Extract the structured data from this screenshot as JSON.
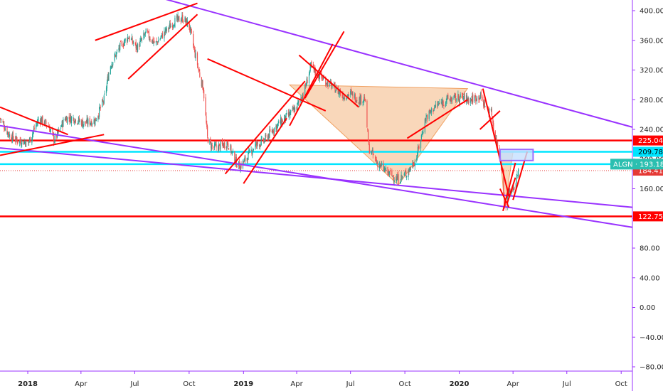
{
  "chart_data": {
    "type": "candlestick",
    "ticker": "ALGN",
    "y_axis": {
      "min": -85,
      "max": 410,
      "side": "right",
      "ticks": [
        400,
        360,
        320,
        280,
        240,
        200,
        160,
        120,
        80,
        40,
        0,
        -40,
        -80
      ],
      "tick_labels": [
        "400.00",
        "360.00",
        "320.00",
        "280.00",
        "240.00",
        "200.00",
        "160.00",
        "120.00",
        "80.00",
        "40.00",
        "0.00",
        "−40.00",
        "−80.00"
      ]
    },
    "x_axis": {
      "start": "2017-11-15",
      "end": "2020-10-20",
      "ticks": [
        {
          "label": "2018",
          "date": "2018-01-01",
          "bold": true
        },
        {
          "label": "Apr",
          "date": "2018-04-01",
          "bold": false
        },
        {
          "label": "Jul",
          "date": "2018-07-01",
          "bold": false
        },
        {
          "label": "Oct",
          "date": "2018-10-01",
          "bold": false
        },
        {
          "label": "2019",
          "date": "2019-01-01",
          "bold": true
        },
        {
          "label": "Apr",
          "date": "2019-04-01",
          "bold": false
        },
        {
          "label": "Jul",
          "date": "2019-07-01",
          "bold": false
        },
        {
          "label": "Oct",
          "date": "2019-10-01",
          "bold": false
        },
        {
          "label": "2020",
          "date": "2020-01-01",
          "bold": true
        },
        {
          "label": "Apr",
          "date": "2020-04-01",
          "bold": false
        },
        {
          "label": "Jul",
          "date": "2020-07-01",
          "bold": false
        },
        {
          "label": "Oct",
          "date": "2020-10-01",
          "bold": false
        }
      ]
    },
    "price_path": [
      [
        "2017-11-15",
        255
      ],
      [
        "2017-12-01",
        232
      ],
      [
        "2017-12-15",
        225
      ],
      [
        "2018-01-02",
        222
      ],
      [
        "2018-01-20",
        255
      ],
      [
        "2018-02-05",
        245
      ],
      [
        "2018-02-15",
        225
      ],
      [
        "2018-03-05",
        255
      ],
      [
        "2018-03-20",
        255
      ],
      [
        "2018-04-05",
        248
      ],
      [
        "2018-04-25",
        252
      ],
      [
        "2018-05-10",
        280
      ],
      [
        "2018-05-20",
        325
      ],
      [
        "2018-06-05",
        350
      ],
      [
        "2018-06-20",
        365
      ],
      [
        "2018-07-05",
        350
      ],
      [
        "2018-07-20",
        370
      ],
      [
        "2018-08-05",
        355
      ],
      [
        "2018-08-20",
        370
      ],
      [
        "2018-09-05",
        385
      ],
      [
        "2018-09-20",
        390
      ],
      [
        "2018-10-01",
        380
      ],
      [
        "2018-10-10",
        345
      ],
      [
        "2018-10-20",
        310
      ],
      [
        "2018-10-25",
        295
      ],
      [
        "2018-11-01",
        228
      ],
      [
        "2018-11-10",
        215
      ],
      [
        "2018-11-25",
        218
      ],
      [
        "2018-12-05",
        222
      ],
      [
        "2018-12-20",
        195
      ],
      [
        "2018-12-26",
        190
      ],
      [
        "2019-01-05",
        200
      ],
      [
        "2019-01-20",
        218
      ],
      [
        "2019-02-05",
        225
      ],
      [
        "2019-02-20",
        240
      ],
      [
        "2019-03-05",
        250
      ],
      [
        "2019-03-20",
        260
      ],
      [
        "2019-04-01",
        270
      ],
      [
        "2019-04-15",
        295
      ],
      [
        "2019-04-25",
        325
      ],
      [
        "2019-05-05",
        315
      ],
      [
        "2019-05-20",
        305
      ],
      [
        "2019-06-05",
        295
      ],
      [
        "2019-06-20",
        285
      ],
      [
        "2019-07-01",
        288
      ],
      [
        "2019-07-15",
        280
      ],
      [
        "2019-07-25",
        282
      ],
      [
        "2019-08-01",
        215
      ],
      [
        "2019-08-15",
        195
      ],
      [
        "2019-09-01",
        182
      ],
      [
        "2019-09-20",
        172
      ],
      [
        "2019-10-05",
        182
      ],
      [
        "2019-10-20",
        200
      ],
      [
        "2019-11-05",
        255
      ],
      [
        "2019-11-20",
        270
      ],
      [
        "2019-12-10",
        280
      ],
      [
        "2020-01-05",
        283
      ],
      [
        "2020-01-20",
        280
      ],
      [
        "2020-02-05",
        285
      ],
      [
        "2020-02-15",
        270
      ],
      [
        "2020-02-25",
        262
      ],
      [
        "2020-03-01",
        230
      ],
      [
        "2020-03-10",
        210
      ],
      [
        "2020-03-18",
        135
      ],
      [
        "2020-03-25",
        155
      ],
      [
        "2020-04-05",
        165
      ],
      [
        "2020-04-10",
        184.41
      ]
    ],
    "horizontal_levels": [
      {
        "value": 225.04,
        "label": "225.04",
        "color": "#ff0000"
      },
      {
        "value": 209.78,
        "label": "209.78",
        "color": "#00e5ff"
      },
      {
        "value": 193.18,
        "label": "193.18",
        "color": "#00e5ff"
      },
      {
        "value": 122.75,
        "label": "122.75",
        "color": "#ff0000"
      }
    ],
    "last_price": {
      "value": 184.41,
      "label": "184.41",
      "color": "#e53935"
    },
    "price_tag": {
      "ticker": "ALGN",
      "value": "193.18",
      "color": "#2bbfb0"
    },
    "trendlines": [
      {
        "color": "#9932ff",
        "from": [
          "2018-08-01",
          420
        ],
        "to": [
          "2020-10-20",
          243
        ]
      },
      {
        "color": "#9932ff",
        "from": [
          "2017-11-15",
          215
        ],
        "to": [
          "2020-10-20",
          135
        ]
      },
      {
        "color": "#9932ff",
        "from": [
          "2017-11-15",
          245
        ],
        "to": [
          "2020-10-20",
          108
        ]
      },
      {
        "color": "#ff0000",
        "from": [
          "2017-11-15",
          270
        ],
        "to": [
          "2018-03-10",
          233
        ]
      },
      {
        "color": "#ff0000",
        "from": [
          "2017-11-15",
          205
        ],
        "to": [
          "2018-05-10",
          233
        ]
      },
      {
        "color": "#ff0000",
        "from": [
          "2018-04-25",
          360
        ],
        "to": [
          "2018-10-15",
          410
        ]
      },
      {
        "color": "#ff0000",
        "from": [
          "2018-06-20",
          308
        ],
        "to": [
          "2018-10-15",
          395
        ]
      },
      {
        "color": "#ff0000",
        "from": [
          "2018-11-01",
          335
        ],
        "to": [
          "2019-05-20",
          265
        ]
      },
      {
        "color": "#ff0000",
        "from": [
          "2018-12-01",
          180
        ],
        "to": [
          "2019-04-15",
          305
        ]
      },
      {
        "color": "#ff0000",
        "from": [
          "2019-01-01",
          167
        ],
        "to": [
          "2019-03-15",
          255
        ]
      },
      {
        "color": "#ff0000",
        "from": [
          "2019-03-20",
          245
        ],
        "to": [
          "2019-06-01",
          355
        ]
      },
      {
        "color": "#ff0000",
        "from": [
          "2019-04-05",
          340
        ],
        "to": [
          "2019-07-15",
          270
        ]
      },
      {
        "color": "#ff0000",
        "from": [
          "2019-04-15",
          282
        ],
        "to": [
          "2019-06-20",
          372
        ]
      },
      {
        "color": "#ff0000",
        "from": [
          "2019-10-05",
          228
        ],
        "to": [
          "2020-01-15",
          280
        ]
      },
      {
        "color": "#ff0000",
        "from": [
          "2020-02-10",
          295
        ],
        "to": [
          "2020-03-25",
          150
        ]
      },
      {
        "color": "#ff0000",
        "from": [
          "2020-02-05",
          240
        ],
        "to": [
          "2020-03-10",
          265
        ]
      },
      {
        "color": "#ff0000",
        "from": [
          "2020-03-10",
          160
        ],
        "to": [
          "2020-03-25",
          135
        ]
      },
      {
        "color": "#ff0000",
        "from": [
          "2020-03-15",
          130
        ],
        "to": [
          "2020-04-05",
          195
        ]
      },
      {
        "color": "#ff0000",
        "from": [
          "2020-03-22",
          140
        ],
        "to": [
          "2020-04-05",
          175
        ]
      },
      {
        "color": "#ff0000",
        "from": [
          "2020-04-01",
          145
        ],
        "to": [
          "2020-04-25",
          210
        ]
      }
    ],
    "patterns": [
      {
        "type": "triangle",
        "fill": "#f7c9a3",
        "stroke": "#f0a060",
        "points": [
          [
            "2019-03-20",
            300
          ],
          [
            "2019-09-20",
            165
          ],
          [
            "2020-01-15",
            295
          ]
        ]
      },
      {
        "type": "triangle",
        "fill": "#f7c9a3",
        "stroke": "#f0a060",
        "points": [
          [
            "2020-03-10",
            210
          ],
          [
            "2020-03-18",
            135
          ],
          [
            "2020-04-01",
            210
          ]
        ]
      }
    ],
    "highlight_box": {
      "from": [
        "2020-03-10",
        213
      ],
      "to": [
        "2020-05-05",
        198
      ],
      "fill": "#c6e0ff",
      "stroke": "#9c6cff"
    },
    "grid": false
  }
}
